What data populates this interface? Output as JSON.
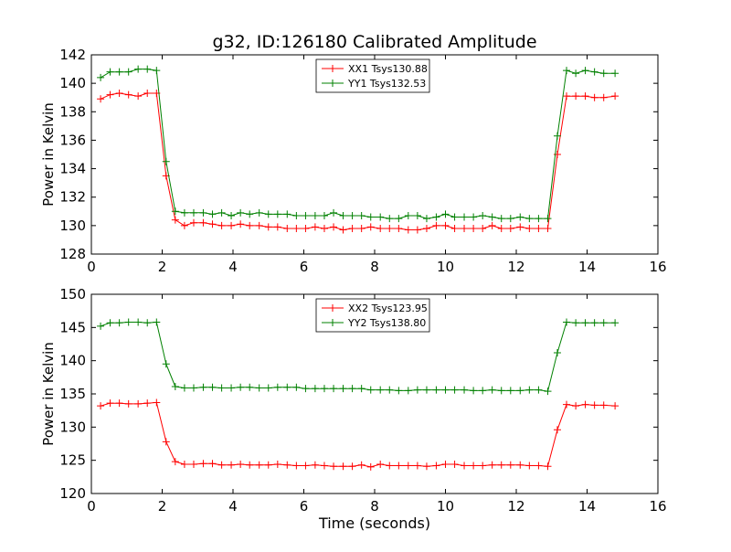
{
  "figure": {
    "title": "g32, ID:126180 Calibrated Amplitude",
    "xlabel": "Time (seconds)"
  },
  "colors": {
    "xx": "#ff0000",
    "yy": "#008000"
  },
  "chart_data": [
    {
      "type": "line",
      "title": "g32, ID:126180 Calibrated Amplitude",
      "xlabel": "",
      "ylabel": "Power in Kelvin",
      "xlim": [
        0,
        16
      ],
      "ylim": [
        128,
        142
      ],
      "xticks": [
        0,
        2,
        4,
        6,
        8,
        10,
        12,
        14,
        16
      ],
      "yticks": [
        128,
        130,
        132,
        134,
        136,
        138,
        140,
        142
      ],
      "grid": false,
      "legend": "top-center",
      "x": [
        0.26,
        0.53,
        0.79,
        1.05,
        1.32,
        1.58,
        1.84,
        2.11,
        2.37,
        2.63,
        2.89,
        3.16,
        3.42,
        3.68,
        3.95,
        4.21,
        4.47,
        4.74,
        5.0,
        5.26,
        5.53,
        5.79,
        6.05,
        6.32,
        6.58,
        6.84,
        7.11,
        7.37,
        7.63,
        7.89,
        8.16,
        8.42,
        8.68,
        8.95,
        9.21,
        9.47,
        9.74,
        10.0,
        10.26,
        10.53,
        10.79,
        11.05,
        11.32,
        11.58,
        11.84,
        12.11,
        12.37,
        12.63,
        12.89,
        13.16,
        13.42,
        13.68,
        13.95,
        14.21,
        14.47,
        14.79
      ],
      "series": [
        {
          "name": "XX1 Tsys130.88",
          "color": "#ff0000",
          "values": [
            138.9,
            139.2,
            139.3,
            139.2,
            139.1,
            139.3,
            139.3,
            133.5,
            130.4,
            130.0,
            130.2,
            130.2,
            130.1,
            130.0,
            130.0,
            130.1,
            130.0,
            130.0,
            129.9,
            129.9,
            129.8,
            129.8,
            129.8,
            129.9,
            129.8,
            129.9,
            129.7,
            129.8,
            129.8,
            129.9,
            129.8,
            129.8,
            129.8,
            129.7,
            129.7,
            129.8,
            130.0,
            130.0,
            129.8,
            129.8,
            129.8,
            129.8,
            130.0,
            129.8,
            129.8,
            129.9,
            129.8,
            129.8,
            129.8,
            135.0,
            139.1,
            139.1,
            139.1,
            139.0,
            139.0,
            139.1
          ]
        },
        {
          "name": "YY1 Tsys132.53",
          "color": "#008000",
          "values": [
            140.4,
            140.8,
            140.8,
            140.8,
            141.0,
            141.0,
            140.9,
            134.5,
            131.0,
            130.9,
            130.9,
            130.9,
            130.8,
            130.9,
            130.7,
            130.9,
            130.8,
            130.9,
            130.8,
            130.8,
            130.8,
            130.7,
            130.7,
            130.7,
            130.7,
            130.9,
            130.7,
            130.7,
            130.7,
            130.6,
            130.6,
            130.5,
            130.5,
            130.7,
            130.7,
            130.5,
            130.6,
            130.8,
            130.6,
            130.6,
            130.6,
            130.7,
            130.6,
            130.5,
            130.5,
            130.6,
            130.5,
            130.5,
            130.5,
            136.3,
            140.9,
            140.7,
            140.9,
            140.8,
            140.7,
            140.7
          ]
        }
      ]
    },
    {
      "type": "line",
      "title": "",
      "xlabel": "Time (seconds)",
      "ylabel": "Power in Kelvin",
      "xlim": [
        0,
        16
      ],
      "ylim": [
        120,
        150
      ],
      "xticks": [
        0,
        2,
        4,
        6,
        8,
        10,
        12,
        14,
        16
      ],
      "yticks": [
        120,
        125,
        130,
        135,
        140,
        145,
        150
      ],
      "grid": false,
      "legend": "top-center",
      "x": [
        0.26,
        0.53,
        0.79,
        1.05,
        1.32,
        1.58,
        1.84,
        2.11,
        2.37,
        2.63,
        2.89,
        3.16,
        3.42,
        3.68,
        3.95,
        4.21,
        4.47,
        4.74,
        5.0,
        5.26,
        5.53,
        5.79,
        6.05,
        6.32,
        6.58,
        6.84,
        7.11,
        7.37,
        7.63,
        7.89,
        8.16,
        8.42,
        8.68,
        8.95,
        9.21,
        9.47,
        9.74,
        10.0,
        10.26,
        10.53,
        10.79,
        11.05,
        11.32,
        11.58,
        11.84,
        12.11,
        12.37,
        12.63,
        12.89,
        13.16,
        13.42,
        13.68,
        13.95,
        14.21,
        14.47,
        14.79
      ],
      "series": [
        {
          "name": "XX2 Tsys123.95",
          "color": "#ff0000",
          "values": [
            133.2,
            133.6,
            133.6,
            133.5,
            133.5,
            133.6,
            133.7,
            127.8,
            124.8,
            124.4,
            124.4,
            124.5,
            124.5,
            124.3,
            124.3,
            124.4,
            124.3,
            124.3,
            124.3,
            124.4,
            124.3,
            124.2,
            124.2,
            124.3,
            124.2,
            124.1,
            124.1,
            124.1,
            124.3,
            124.0,
            124.4,
            124.2,
            124.2,
            124.2,
            124.2,
            124.1,
            124.2,
            124.4,
            124.4,
            124.2,
            124.2,
            124.2,
            124.3,
            124.3,
            124.3,
            124.3,
            124.2,
            124.2,
            124.1,
            129.6,
            133.4,
            133.2,
            133.4,
            133.3,
            133.3,
            133.2
          ]
        },
        {
          "name": "YY2 Tsys138.80",
          "color": "#008000",
          "values": [
            145.2,
            145.7,
            145.7,
            145.8,
            145.8,
            145.7,
            145.8,
            139.5,
            136.1,
            135.9,
            135.9,
            136.0,
            136.0,
            135.9,
            135.9,
            136.0,
            136.0,
            135.9,
            135.9,
            136.0,
            136.0,
            136.0,
            135.8,
            135.8,
            135.8,
            135.8,
            135.8,
            135.8,
            135.8,
            135.6,
            135.6,
            135.6,
            135.5,
            135.5,
            135.6,
            135.6,
            135.6,
            135.6,
            135.6,
            135.6,
            135.5,
            135.5,
            135.6,
            135.5,
            135.5,
            135.5,
            135.6,
            135.6,
            135.4,
            141.2,
            145.8,
            145.7,
            145.7,
            145.7,
            145.7,
            145.7
          ]
        }
      ]
    }
  ]
}
